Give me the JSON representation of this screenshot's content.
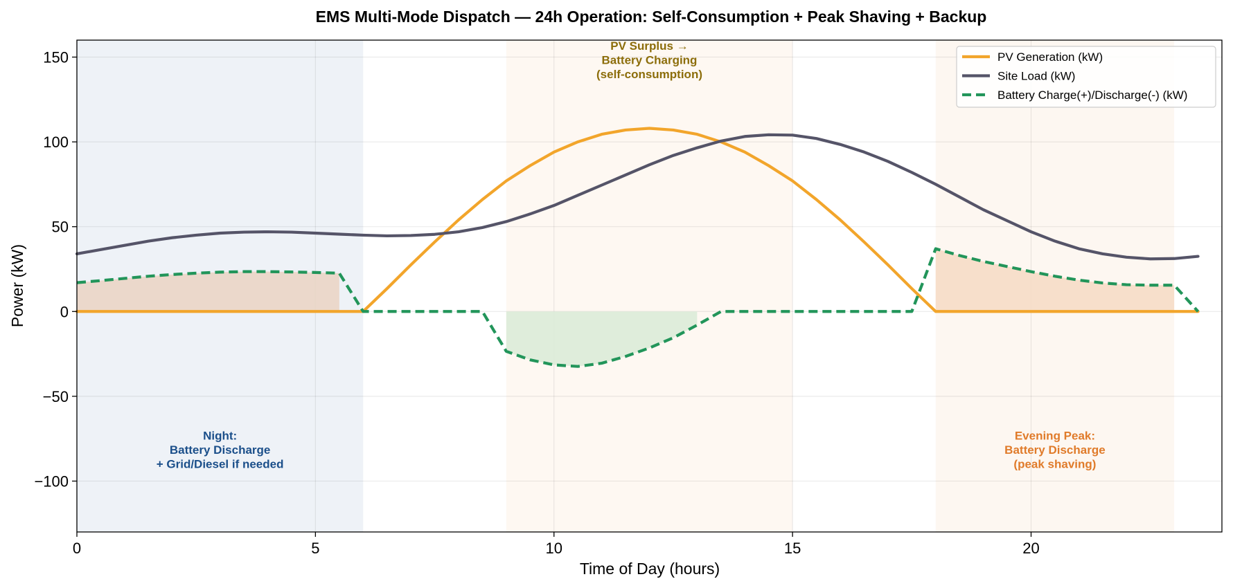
{
  "chart_data": {
    "type": "line",
    "title": "EMS Multi-Mode Dispatch — 24h Operation: Self-Consumption + Peak Shaving + Backup",
    "xlabel": "Time of Day (hours)",
    "ylabel": "Power (kW)",
    "xlim": [
      0,
      24
    ],
    "ylim": [
      -130,
      160
    ],
    "xticks": [
      0,
      5,
      10,
      15,
      20
    ],
    "yticks": [
      150,
      100,
      50,
      0,
      -50,
      -100
    ],
    "xtick_labels": [
      "0",
      "5",
      "10",
      "15",
      "20"
    ],
    "ytick_labels": [
      "150",
      "100",
      "50",
      "0",
      "−50",
      "−100"
    ],
    "grid": true,
    "legend_position": "top-right",
    "x": [
      0,
      0.5,
      1,
      1.5,
      2,
      2.5,
      3,
      3.5,
      4,
      4.5,
      5,
      5.5,
      6,
      6.5,
      7,
      7.5,
      8,
      8.5,
      9,
      9.5,
      10,
      10.5,
      11,
      11.5,
      12,
      12.5,
      13,
      13.5,
      14,
      14.5,
      15,
      15.5,
      16,
      16.5,
      17,
      17.5,
      18,
      18.5,
      19,
      19.5,
      20,
      20.5,
      21,
      21.5,
      22,
      22.5,
      23,
      23.5
    ],
    "series": [
      {
        "name": "PV Generation (kW)",
        "color": "#f2a52b",
        "style": "solid",
        "values": [
          0,
          0,
          0,
          0,
          0,
          0,
          0,
          0,
          0,
          0,
          0,
          0,
          0,
          13.5,
          27.5,
          41,
          54,
          66,
          77,
          86,
          94,
          100,
          104.5,
          107,
          108,
          107,
          104.5,
          100,
          94,
          86,
          77,
          66,
          54,
          41,
          27.5,
          13.5,
          0,
          0,
          0,
          0,
          0,
          0,
          0,
          0,
          0,
          0,
          0,
          0
        ]
      },
      {
        "name": "Site Load (kW)",
        "color": "#555468",
        "style": "solid",
        "values": [
          34,
          36.5,
          39,
          41.5,
          43.5,
          45,
          46.2,
          46.8,
          47,
          46.8,
          46.2,
          45.6,
          45,
          44.6,
          44.8,
          45.5,
          47,
          49.5,
          53,
          57.5,
          62.5,
          68.5,
          74.5,
          80.5,
          86.5,
          92,
          96.5,
          100.5,
          103.2,
          104.2,
          104,
          102,
          98.5,
          94,
          88.5,
          82,
          75,
          67.5,
          60,
          53.5,
          47,
          41.5,
          37,
          34,
          32,
          31,
          31.2,
          32.5
        ]
      },
      {
        "name": "Battery Charge(+)/Discharge(-) (kW)",
        "color": "#22955a",
        "style": "dashed",
        "values": [
          17,
          18.2,
          19.5,
          20.8,
          21.8,
          22.6,
          23.2,
          23.5,
          23.5,
          23.3,
          23,
          22.6,
          0,
          0,
          0,
          0,
          0,
          0,
          -23.5,
          -28.5,
          -31.5,
          -32.4,
          -30.5,
          -26.5,
          -21.5,
          -15.5,
          -8,
          0,
          0,
          0,
          0,
          0,
          0,
          0,
          0,
          0,
          37,
          33,
          29.5,
          26.5,
          23.5,
          20.8,
          18.5,
          16.8,
          15.8,
          15.5,
          15.5,
          0
        ]
      }
    ],
    "shaded_regions": [
      {
        "x_start": 0,
        "x_end": 6,
        "color": "#eef2f7"
      },
      {
        "x_start": 9,
        "x_end": 15,
        "color": "#fef8f2"
      },
      {
        "x_start": 18,
        "x_end": 23,
        "color": "#fdf7f1"
      }
    ],
    "fill_regions": [
      {
        "x_start": 0,
        "x_end": 5.5,
        "color": "#ead5c5"
      },
      {
        "x_start": 9,
        "x_end": 13,
        "color": "#dcebd8"
      },
      {
        "x_start": 18,
        "x_end": 23,
        "color": "#f6dcc6"
      }
    ],
    "annotations": [
      {
        "lines": [
          "Night:",
          "Battery Discharge",
          "+ Grid/Diesel if needed"
        ],
        "x": 3,
        "y": -84,
        "color": "#1b4f8a"
      },
      {
        "lines": [
          "PV Surplus →",
          "Battery Charging",
          "(self-consumption)"
        ],
        "x": 12,
        "y": 146,
        "color": "#8c6d0a"
      },
      {
        "lines": [
          "Evening Peak:",
          "Battery Discharge",
          "(peak shaving)"
        ],
        "x": 20.5,
        "y": -84,
        "color": "#e07b2a"
      }
    ]
  }
}
